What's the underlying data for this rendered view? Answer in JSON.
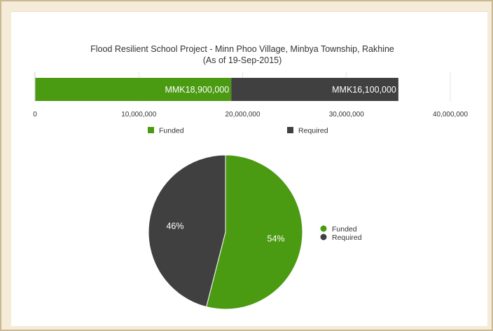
{
  "chart_data": [
    {
      "type": "bar",
      "orientation": "horizontal",
      "stacked": true,
      "title": "Flood Resilient School Project - Minn Phoo Village, Minbya Township, Rakhine",
      "subtitle": "(As of 19-Sep-2015)",
      "xlim": [
        0,
        40000000
      ],
      "ticks": [
        0,
        10000000,
        20000000,
        30000000,
        40000000
      ],
      "tick_labels": [
        "0",
        "10,000,000",
        "20,000,000",
        "30,000,000",
        "40,000,000"
      ],
      "grid": true,
      "legend_position": "bottom",
      "series": [
        {
          "name": "Funded",
          "value": 18900000,
          "label": "MMK18,900,000",
          "color": "#4a9a12"
        },
        {
          "name": "Required",
          "value": 16100000,
          "label": "MMK16,100,000",
          "color": "#404040"
        }
      ]
    },
    {
      "type": "pie",
      "legend_position": "right",
      "slices": [
        {
          "name": "Funded",
          "value": 54,
          "label": "54%",
          "color": "#4a9a12"
        },
        {
          "name": "Required",
          "value": 46,
          "label": "46%",
          "color": "#404040"
        }
      ]
    }
  ]
}
